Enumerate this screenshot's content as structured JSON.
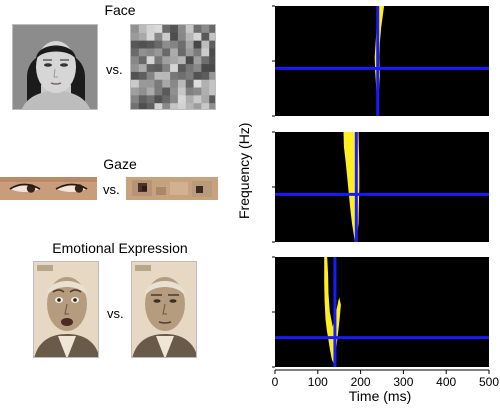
{
  "conditions": [
    {
      "title": "Face",
      "vs_label": "vs."
    },
    {
      "title": "Gaze",
      "vs_label": "vs."
    },
    {
      "title": "Emotional Expression",
      "vs_label": "vs."
    }
  ],
  "colors": {
    "background": "#000000",
    "significance": "#ffee22",
    "marker": "#1a1aff"
  },
  "chart_data": {
    "type": "heatmap",
    "xlabel": "Time (ms)",
    "ylabel": "Frequency (Hz)",
    "xlim": [
      0,
      500
    ],
    "ylim": [
      30,
      60
    ],
    "x_ticks": [
      "0",
      "100",
      "200",
      "300",
      "400",
      "500"
    ],
    "y_ticks": [
      "60",
      "45",
      "30"
    ],
    "panels": [
      {
        "condition": "Face",
        "peak_time_ms": 240,
        "peak_frequency_hz": 43,
        "region": [
          [
            238,
            60
          ],
          [
            255,
            60
          ],
          [
            248,
            54
          ],
          [
            245,
            50
          ],
          [
            244,
            46
          ],
          [
            245,
            41
          ],
          [
            243,
            37
          ],
          [
            241,
            33
          ],
          [
            237,
            37
          ],
          [
            234,
            42
          ],
          [
            233,
            46
          ],
          [
            235,
            50
          ],
          [
            237,
            53
          ]
        ]
      },
      {
        "condition": "Gaze",
        "peak_time_ms": 190,
        "peak_frequency_hz": 43,
        "region": [
          [
            160,
            60
          ],
          [
            195,
            60
          ],
          [
            196,
            55
          ],
          [
            197,
            50
          ],
          [
            197,
            45
          ],
          [
            196,
            40
          ],
          [
            195,
            35
          ],
          [
            190,
            30
          ],
          [
            187,
            30
          ],
          [
            180,
            35
          ],
          [
            175,
            40
          ],
          [
            170,
            46
          ],
          [
            165,
            52
          ],
          [
            161,
            56
          ]
        ]
      },
      {
        "condition": "Emotional Expression",
        "peak_time_ms": 140,
        "peak_frequency_hz": 38,
        "region": [
          [
            115,
            60
          ],
          [
            122,
            60
          ],
          [
            124,
            55
          ],
          [
            125,
            50
          ],
          [
            128,
            45
          ],
          [
            135,
            41
          ],
          [
            150,
            49
          ],
          [
            154,
            47
          ],
          [
            151,
            43
          ],
          [
            145,
            37
          ],
          [
            141,
            33
          ],
          [
            137,
            31
          ],
          [
            133,
            32
          ],
          [
            128,
            35
          ],
          [
            124,
            38
          ],
          [
            121,
            40
          ],
          [
            118,
            43
          ],
          [
            116,
            48
          ],
          [
            115,
            53
          ]
        ]
      }
    ]
  }
}
